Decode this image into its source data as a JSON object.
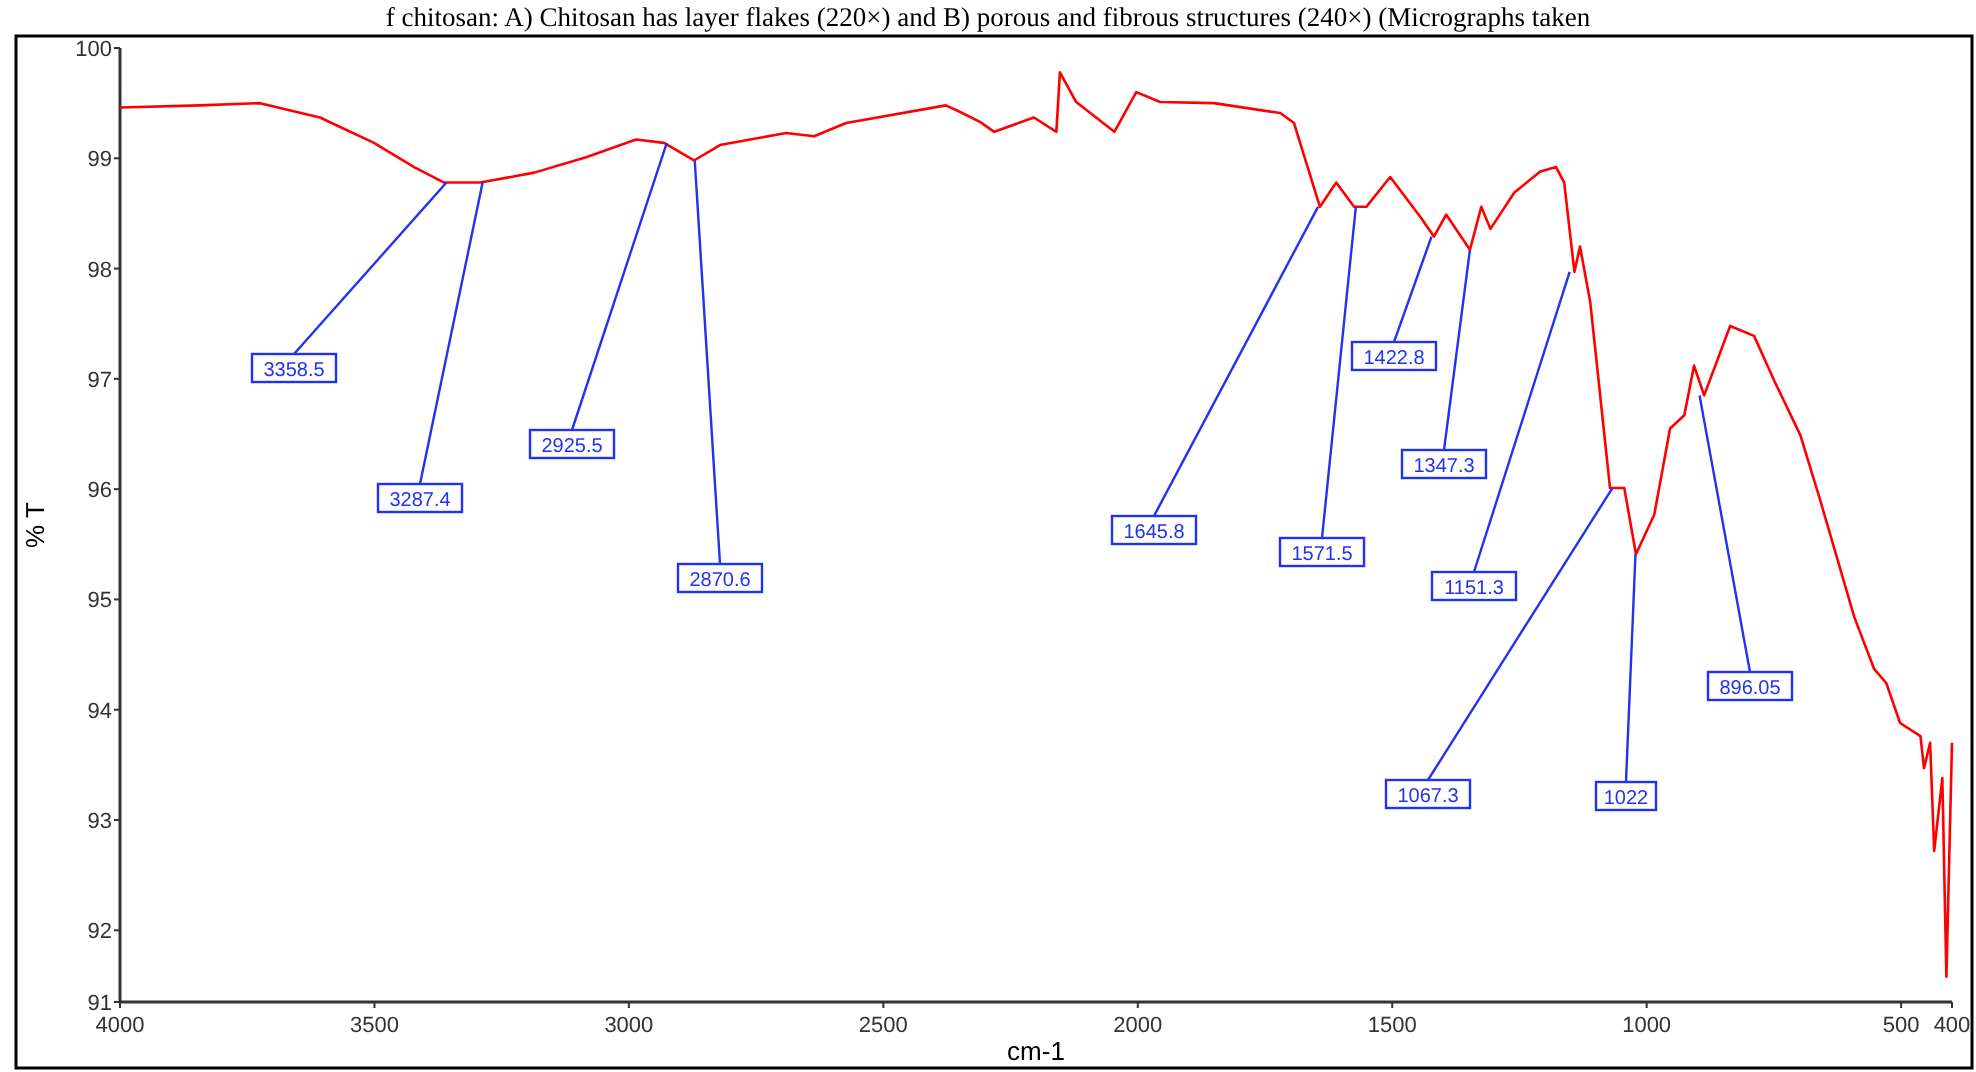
{
  "chart_data": {
    "type": "line",
    "xlabel": "cm-1",
    "ylabel": "% T",
    "xlim": [
      4000,
      400
    ],
    "xticks": [
      4000,
      3500,
      3000,
      2500,
      2000,
      1500,
      1000,
      500,
      400
    ],
    "ylim": [
      91.35,
      100
    ],
    "yticks": [
      {
        "value": 91.35,
        "label": "91"
      },
      92,
      93,
      94,
      95,
      96,
      97,
      98,
      99,
      100
    ],
    "grid": false,
    "marker": "none",
    "line_style": "solid",
    "x": [
      4000,
      3843,
      3725,
      3607,
      3501,
      3422,
      3363,
      3292,
      3186,
      3084,
      2986,
      2931,
      2872,
      2821,
      2691,
      2636,
      2573,
      2377,
      2349,
      2310,
      2282,
      2204,
      2160,
      2153,
      2121,
      2046,
      2003,
      1956,
      1850,
      1720,
      1693,
      1669,
      1642,
      1610,
      1575,
      1551,
      1504,
      1445,
      1418,
      1394,
      1347.3,
      1325,
      1307,
      1260,
      1209,
      1178,
      1162,
      1142,
      1131,
      1111,
      1072,
      1044,
      1021,
      985,
      954,
      926,
      907,
      887,
      836,
      789,
      749,
      698,
      659,
      592,
      553,
      529,
      502,
      462,
      455,
      443,
      435,
      419,
      411,
      400
    ],
    "series": [
      {
        "color": "#ff0000",
        "values": [
          99.46,
          99.48,
          99.5,
          99.37,
          99.14,
          98.92,
          98.78,
          98.78,
          98.87,
          99.01,
          99.17,
          99.14,
          98.98,
          99.12,
          99.23,
          99.2,
          99.32,
          99.48,
          99.42,
          99.33,
          99.24,
          99.37,
          99.24,
          99.78,
          99.51,
          99.24,
          99.6,
          99.51,
          99.5,
          99.41,
          99.32,
          98.96,
          98.56,
          98.78,
          98.56,
          98.56,
          98.83,
          98.47,
          98.29,
          98.49,
          98.17,
          98.56,
          98.36,
          98.69,
          98.88,
          98.92,
          98.78,
          97.97,
          98.2,
          97.7,
          96.01,
          96.01,
          95.41,
          95.77,
          96.55,
          96.67,
          97.12,
          96.85,
          97.48,
          97.39,
          96.98,
          96.49,
          95.9,
          94.84,
          94.37,
          94.24,
          93.88,
          93.76,
          93.47,
          93.7,
          92.72,
          93.38,
          91.58,
          93.7
        ]
      }
    ],
    "annotations": [
      "f chitosan: A) Chitosan has layer flakes (220×) and B) porous and fibrous structures (240×) (Micrographs taken",
      {
        "text": "3358.5",
        "x": 3358.5,
        "y": 98.78
      },
      {
        "text": "3287.4",
        "x": 3287.4,
        "y": 98.78
      },
      {
        "text": "2925.5",
        "x": 2925.5,
        "y": 99.14
      },
      {
        "text": "2870.6",
        "x": 2870.6,
        "y": 98.98
      },
      {
        "text": "1645.8",
        "x": 1645.8,
        "y": 98.56
      },
      {
        "text": "1571.5",
        "x": 1571.5,
        "y": 98.56
      },
      {
        "text": "1422.8",
        "x": 1422.8,
        "y": 98.29
      },
      {
        "text": "1347.3",
        "x": 1347.3,
        "y": 98.17
      },
      {
        "text": "1151.3",
        "x": 1151.3,
        "y": 97.97
      },
      {
        "text": "1067.3",
        "x": 1067.3,
        "y": 96.01
      },
      {
        "text": "1022",
        "x": 1022,
        "y": 95.41
      },
      {
        "text": "896.05",
        "x": 896.05,
        "y": 96.85
      }
    ]
  }
}
